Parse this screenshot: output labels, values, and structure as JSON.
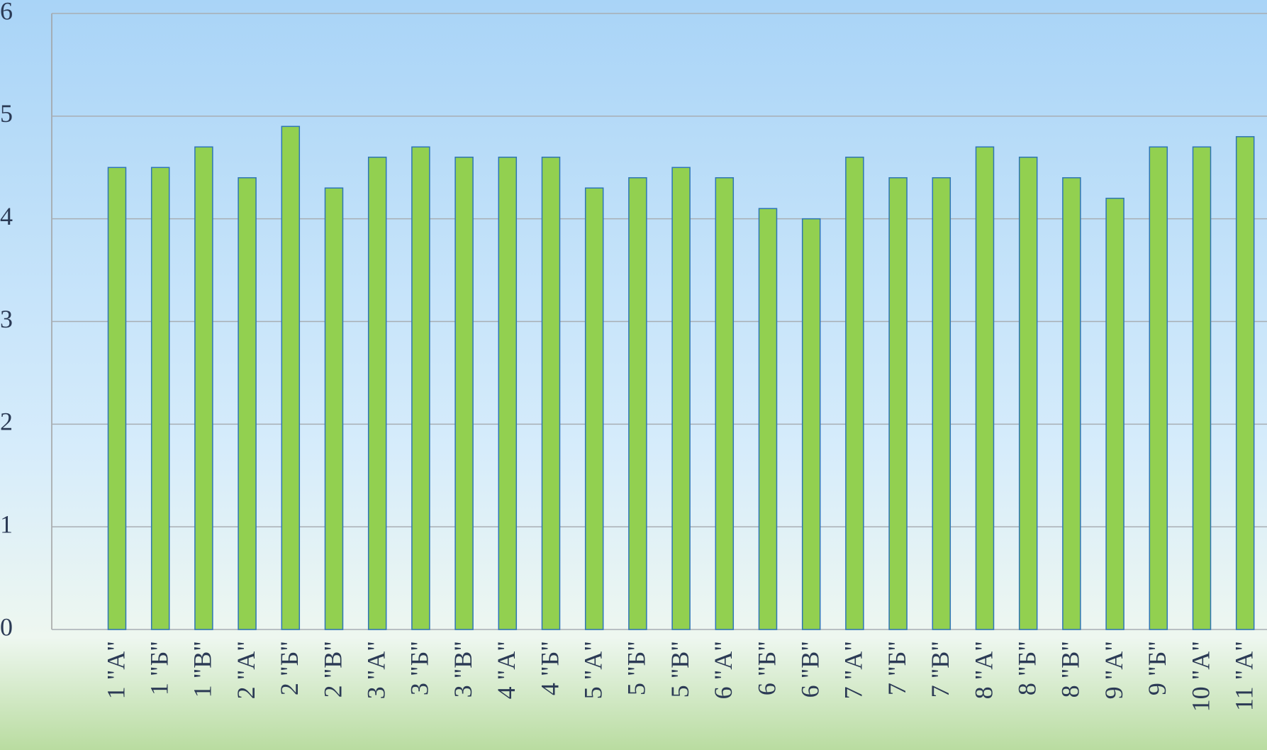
{
  "chart_data": {
    "type": "bar",
    "categories": [
      "1 \"А\"",
      "1 \"Б\"",
      "1 \"В\"",
      "2 \"А\"",
      "2 \"Б\"",
      "2 \"В\"",
      "3 \"А\"",
      "3 \"Б\"",
      "3 \"В\"",
      "4 \"А\"",
      "4 \"Б\"",
      "5 \"А\"",
      "5 \"Б\"",
      "5 \"В\"",
      "6 \"А\"",
      "6 \"Б\"",
      "6 \"В\"",
      "7 \"А\"",
      "7 \"Б\"",
      "7 \"В\"",
      "8 \"А\"",
      "8 \"Б\"",
      "8 \"В\"",
      "9 \"А\"",
      "9 \"Б\"",
      "10 \"А\"",
      "11 \"А\""
    ],
    "values": [
      4.5,
      4.5,
      4.7,
      4.4,
      4.9,
      4.3,
      4.6,
      4.7,
      4.6,
      4.6,
      4.6,
      4.3,
      4.4,
      4.5,
      4.4,
      4.1,
      4.0,
      4.6,
      4.4,
      4.4,
      4.7,
      4.6,
      4.4,
      4.2,
      4.7,
      4.7,
      4.8
    ],
    "color": "#92d050",
    "ylim": [
      0,
      6
    ],
    "yticks": [
      0,
      1,
      2,
      3,
      4,
      5,
      6
    ],
    "grid": true
  }
}
